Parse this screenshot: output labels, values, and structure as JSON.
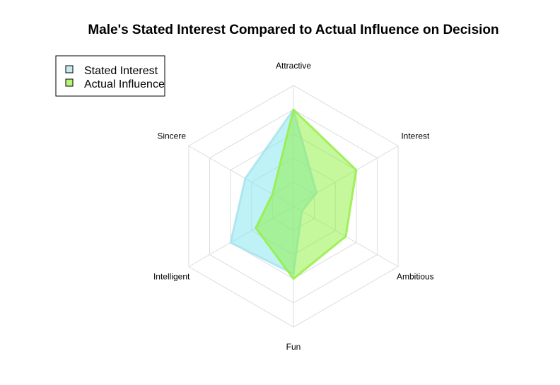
{
  "chart_data": {
    "type": "radar",
    "title": "Male's Stated Interest Compared to Actual Influence on Decision",
    "axes": [
      "Attractive",
      "Interest",
      "Ambitious",
      "Fun",
      "Intelligent",
      "Sincere"
    ],
    "rlim": [
      0,
      1
    ],
    "rings": 5,
    "grid": true,
    "legend_position": "top-left",
    "series": [
      {
        "name": "Stated Interest",
        "values": [
          0.8,
          0.22,
          0.08,
          0.56,
          0.6,
          0.46
        ],
        "fill": "#7FE6EE",
        "stroke": "#A6E3EE",
        "legend_swatch": "#C8EAF2"
      },
      {
        "name": "Actual Influence",
        "values": [
          0.8,
          0.6,
          0.5,
          0.6,
          0.36,
          0.2
        ],
        "fill": "#8CF03C",
        "stroke": "#96EE46",
        "legend_swatch": "#B4F576"
      }
    ]
  }
}
